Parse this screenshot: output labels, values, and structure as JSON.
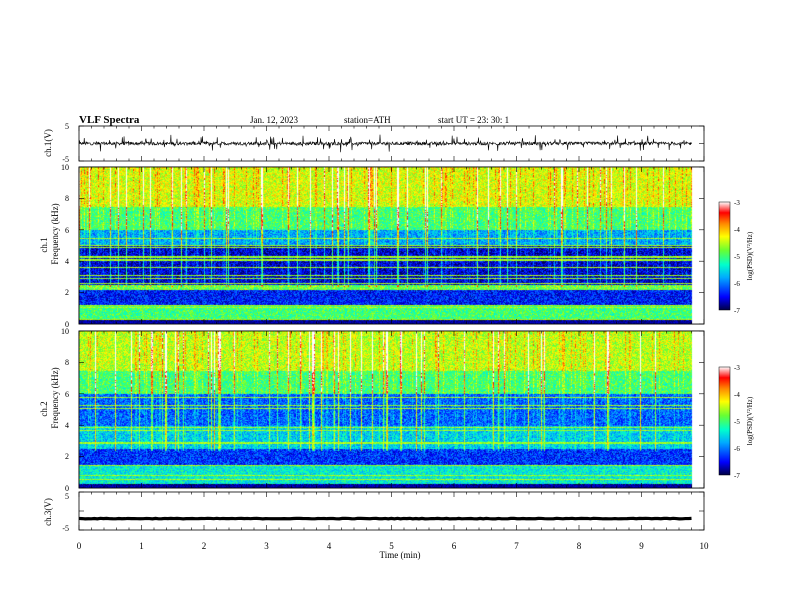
{
  "header": {
    "title": "VLF  Spectra",
    "date": "Jan. 12, 2023",
    "station": "station=ATH",
    "start": "start  UT  =   23: 30: 1"
  },
  "colors": {
    "spectrogram_scale": [
      "#000044",
      "#0000ff",
      "#00aaff",
      "#00ffcc",
      "#66ff33",
      "#ffff00",
      "#ff8800",
      "#ff0000",
      "#ffffff"
    ]
  },
  "chart_data": [
    {
      "type": "line",
      "name": "ch1-waveform",
      "ylabel": "ch.1(V)",
      "yticks": [
        "5",
        "-5"
      ],
      "ylim": [
        -5,
        5
      ],
      "xlim": [
        0,
        10
      ],
      "grid": false,
      "note_values": "waveform centred near 0 V with frequent spikes of about ±2 V over 0–9.8 min"
    },
    {
      "type": "heatmap",
      "name": "ch1-spectrogram",
      "ylabel": "ch.1\nFrequency  (kHz)",
      "ylabel_line1": "ch.1",
      "ylabel_line2": "Frequency  (kHz)",
      "yticks": [
        "0",
        "2",
        "4",
        "6",
        "8",
        "10"
      ],
      "ylim": [
        0,
        10
      ],
      "xlim": [
        0,
        10
      ],
      "data_xmax": 9.8,
      "colorbar": {
        "label": "log(PSD)(V²/Hz)",
        "ticks": [
          "-3",
          "-4",
          "-5",
          "-6",
          "-7"
        ],
        "range": [
          -7,
          -3
        ]
      },
      "bands_khz": [
        {
          "from": 0,
          "to": 0.3,
          "level": -6.9
        },
        {
          "from": 0.3,
          "to": 1.2,
          "level": -5.0
        },
        {
          "from": 1.2,
          "to": 2.2,
          "level": -6.4
        },
        {
          "from": 2.2,
          "to": 2.5,
          "level": -4.8
        },
        {
          "from": 2.5,
          "to": 5.0,
          "level": -6.6
        },
        {
          "from": 5.0,
          "to": 6.0,
          "level": -5.8
        },
        {
          "from": 6.0,
          "to": 7.5,
          "level": -5.0
        },
        {
          "from": 7.5,
          "to": 10.0,
          "level": -4.4
        }
      ]
    },
    {
      "type": "heatmap",
      "name": "ch2-spectrogram",
      "ylabel": "ch.2\nFrequency  (kHz)",
      "ylabel_line1": "ch.2",
      "ylabel_line2": "Frequency  (kHz)",
      "yticks": [
        "0",
        "2",
        "4",
        "6",
        "8",
        "10"
      ],
      "ylim": [
        0,
        10
      ],
      "xlim": [
        0,
        10
      ],
      "data_xmax": 9.8,
      "colorbar": {
        "label": "log(PSD)(V²/Hz)",
        "ticks": [
          "-3",
          "-4",
          "-5",
          "-6",
          "-7"
        ],
        "range": [
          -7,
          -3
        ]
      },
      "bands_khz": [
        {
          "from": 0,
          "to": 0.3,
          "level": -6.9
        },
        {
          "from": 0.3,
          "to": 1.5,
          "level": -5.4
        },
        {
          "from": 1.5,
          "to": 2.5,
          "level": -6.3
        },
        {
          "from": 2.5,
          "to": 4.0,
          "level": -5.6
        },
        {
          "from": 4.0,
          "to": 6.0,
          "level": -6.1
        },
        {
          "from": 6.0,
          "to": 7.5,
          "level": -5.0
        },
        {
          "from": 7.5,
          "to": 10.0,
          "level": -4.5
        }
      ]
    },
    {
      "type": "line",
      "name": "ch3-waveform",
      "ylabel": "ch.3(V)",
      "yticks": [
        "5",
        "-5"
      ],
      "ylim": [
        -5,
        5
      ],
      "xlim": [
        0,
        10
      ],
      "xlabel": "Time  (min)",
      "xticks": [
        "0",
        "1",
        "2",
        "3",
        "4",
        "5",
        "6",
        "7",
        "8",
        "9",
        "10"
      ],
      "note_values": "flat thick trace at about -2 V"
    }
  ]
}
